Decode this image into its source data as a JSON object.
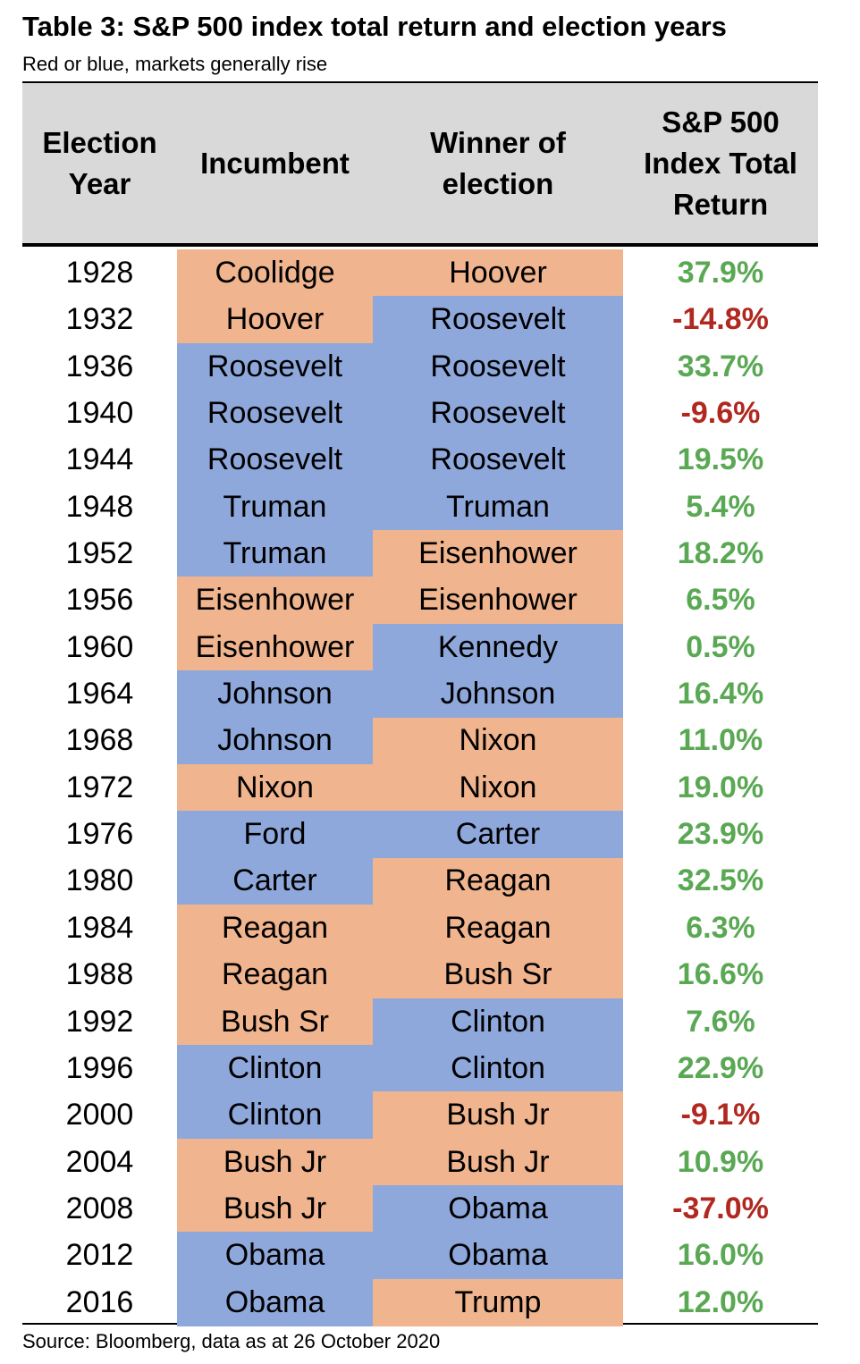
{
  "title": "Table 3: S&P 500 index total return and election years",
  "subtitle": "Red or blue, markets generally rise",
  "source": "Source: Bloomberg, data as at 26 October 2020",
  "table": {
    "header": [
      [
        "Election",
        "Year"
      ],
      [
        "Incumbent"
      ],
      [
        "Winner of",
        "election"
      ],
      [
        "S&P 500",
        "Index Total",
        "Return"
      ]
    ],
    "rows": [
      [
        "1928",
        "Coolidge",
        "Hoover",
        "37.9%"
      ],
      [
        "1932",
        "Hoover",
        "Roosevelt",
        "-14.8%"
      ],
      [
        "1936",
        "Roosevelt",
        "Roosevelt",
        "33.7%"
      ],
      [
        "1940",
        "Roosevelt",
        "Roosevelt",
        "-9.6%"
      ],
      [
        "1944",
        "Roosevelt",
        "Roosevelt",
        "19.5%"
      ],
      [
        "1948",
        "Truman",
        "Truman",
        "5.4%"
      ],
      [
        "1952",
        "Truman",
        "Eisenhower",
        "18.2%"
      ],
      [
        "1956",
        "Eisenhower",
        "Eisenhower",
        "6.5%"
      ],
      [
        "1960",
        "Eisenhower",
        "Kennedy",
        "0.5%"
      ],
      [
        "1964",
        "Johnson",
        "Johnson",
        "16.4%"
      ],
      [
        "1968",
        "Johnson",
        "Nixon",
        "11.0%"
      ],
      [
        "1972",
        "Nixon",
        "Nixon",
        "19.0%"
      ],
      [
        "1976",
        "Ford",
        "Carter",
        "23.9%"
      ],
      [
        "1980",
        "Carter",
        "Reagan",
        "32.5%"
      ],
      [
        "1984",
        "Reagan",
        "Reagan",
        "6.3%"
      ],
      [
        "1988",
        "Reagan",
        "Bush Sr",
        "16.6%"
      ],
      [
        "1992",
        "Bush Sr",
        "Clinton",
        "7.6%"
      ],
      [
        "1996",
        "Clinton",
        "Clinton",
        "22.9%"
      ],
      [
        "2000",
        "Clinton",
        "Bush Jr",
        "-9.1%"
      ],
      [
        "2004",
        "Bush Jr",
        "Bush Jr",
        "10.9%"
      ],
      [
        "2008",
        "Bush Jr",
        "Obama",
        "-37.0%"
      ],
      [
        "2012",
        "Obama",
        "Obama",
        "16.0%"
      ],
      [
        "2016",
        "Obama",
        "Trump",
        "12.0%"
      ]
    ],
    "cell_colors": [
      [
        "#f0b48e",
        "#f0b48e",
        "#5aa854"
      ],
      [
        "#f0b48e",
        "#8fa8dc",
        "#b0281f"
      ],
      [
        "#8fa8dc",
        "#8fa8dc",
        "#5aa854"
      ],
      [
        "#8fa8dc",
        "#8fa8dc",
        "#b0281f"
      ],
      [
        "#8fa8dc",
        "#8fa8dc",
        "#5aa854"
      ],
      [
        "#8fa8dc",
        "#8fa8dc",
        "#5aa854"
      ],
      [
        "#8fa8dc",
        "#f0b48e",
        "#5aa854"
      ],
      [
        "#f0b48e",
        "#f0b48e",
        "#5aa854"
      ],
      [
        "#f0b48e",
        "#8fa8dc",
        "#5aa854"
      ],
      [
        "#8fa8dc",
        "#8fa8dc",
        "#5aa854"
      ],
      [
        "#8fa8dc",
        "#f0b48e",
        "#5aa854"
      ],
      [
        "#f0b48e",
        "#f0b48e",
        "#5aa854"
      ],
      [
        "#8fa8dc",
        "#8fa8dc",
        "#5aa854"
      ],
      [
        "#8fa8dc",
        "#f0b48e",
        "#5aa854"
      ],
      [
        "#f0b48e",
        "#f0b48e",
        "#5aa854"
      ],
      [
        "#f0b48e",
        "#f0b48e",
        "#5aa854"
      ],
      [
        "#f0b48e",
        "#8fa8dc",
        "#5aa854"
      ],
      [
        "#8fa8dc",
        "#8fa8dc",
        "#5aa854"
      ],
      [
        "#8fa8dc",
        "#f0b48e",
        "#b0281f"
      ],
      [
        "#f0b48e",
        "#f0b48e",
        "#5aa854"
      ],
      [
        "#f0b48e",
        "#8fa8dc",
        "#b0281f"
      ],
      [
        "#8fa8dc",
        "#8fa8dc",
        "#5aa854"
      ],
      [
        "#8fa8dc",
        "#f0b48e",
        "#5aa854"
      ]
    ]
  }
}
